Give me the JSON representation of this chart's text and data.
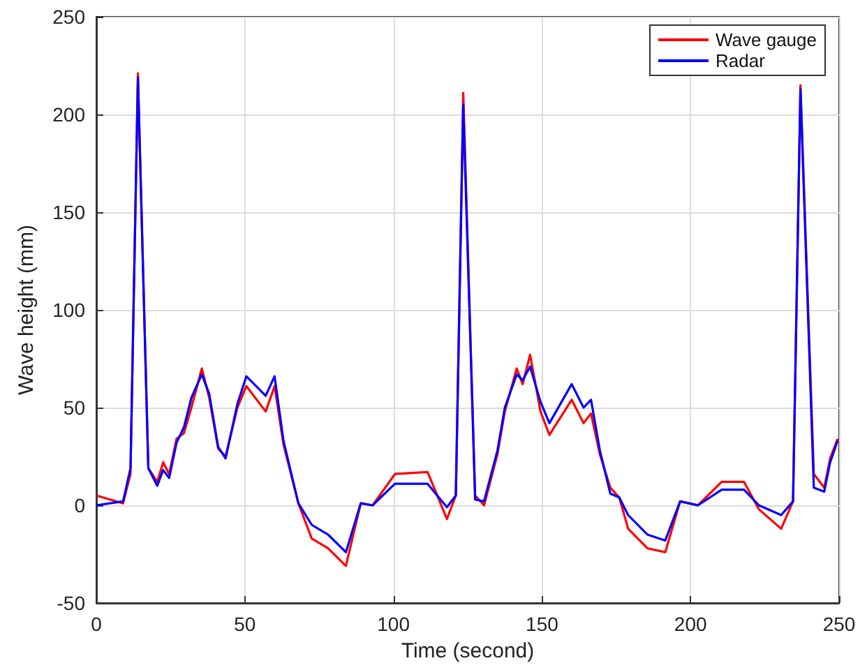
{
  "chart_data": {
    "type": "line",
    "xlabel": "Time (second)",
    "ylabel": "Wave height (mm)",
    "x": [
      0,
      9,
      11.5,
      14,
      17.5,
      20.5,
      22.5,
      24.5,
      27,
      29.5,
      32,
      35.5,
      38,
      41,
      43.5,
      47.5,
      50.5,
      57,
      60,
      63,
      68,
      72.5,
      78,
      84,
      89,
      93,
      100.5,
      111.5,
      118,
      121,
      123.5,
      127.5,
      130.5,
      135,
      137.5,
      141.5,
      143.5,
      146,
      149.5,
      152.5,
      160,
      164,
      166.5,
      169.5,
      173,
      176,
      179,
      185.5,
      191.5,
      196.5,
      202.5,
      210.5,
      218,
      223,
      230.5,
      234.5,
      237,
      241.5,
      245,
      247,
      249.5
    ],
    "series": [
      {
        "name": "Wave gauge",
        "color": "#ff0000",
        "values": [
          5,
          1,
          16,
          221,
          19,
          12,
          22,
          16,
          34,
          37,
          50,
          70,
          55,
          29,
          25,
          50,
          61,
          48,
          61,
          31,
          1,
          -17,
          -22,
          -31,
          1,
          0,
          16,
          17,
          -7,
          5,
          211,
          5,
          0,
          26,
          48,
          70,
          62,
          77,
          48,
          36,
          54,
          42,
          47,
          26,
          9,
          4,
          -12,
          -22,
          -24,
          2,
          0,
          12,
          12,
          -2,
          -12,
          2,
          215,
          16,
          9,
          24,
          34
        ]
      },
      {
        "name": "Radar",
        "color": "#0000ff",
        "values": [
          0,
          2,
          19,
          219,
          19,
          10,
          18,
          14,
          32,
          40,
          55,
          67,
          57,
          30,
          24,
          52,
          66,
          56,
          66,
          33,
          1,
          -10,
          -15,
          -24,
          1,
          0,
          11,
          11,
          -1,
          5,
          205,
          3,
          2,
          28,
          50,
          67,
          64,
          71,
          53,
          42,
          62,
          50,
          54,
          28,
          6,
          4,
          -5,
          -15,
          -18,
          2,
          0,
          8,
          8,
          0,
          -5,
          2,
          213,
          9,
          7,
          22,
          33
        ]
      }
    ],
    "xlim": [
      0,
      250
    ],
    "xticks": [
      0,
      50,
      100,
      150,
      200,
      250
    ],
    "ylim": [
      -50,
      250
    ],
    "yticks": [
      -50,
      0,
      50,
      100,
      150,
      200,
      250
    ],
    "grid": true,
    "legend": "top right",
    "marker": "none",
    "line_style": "solid"
  }
}
